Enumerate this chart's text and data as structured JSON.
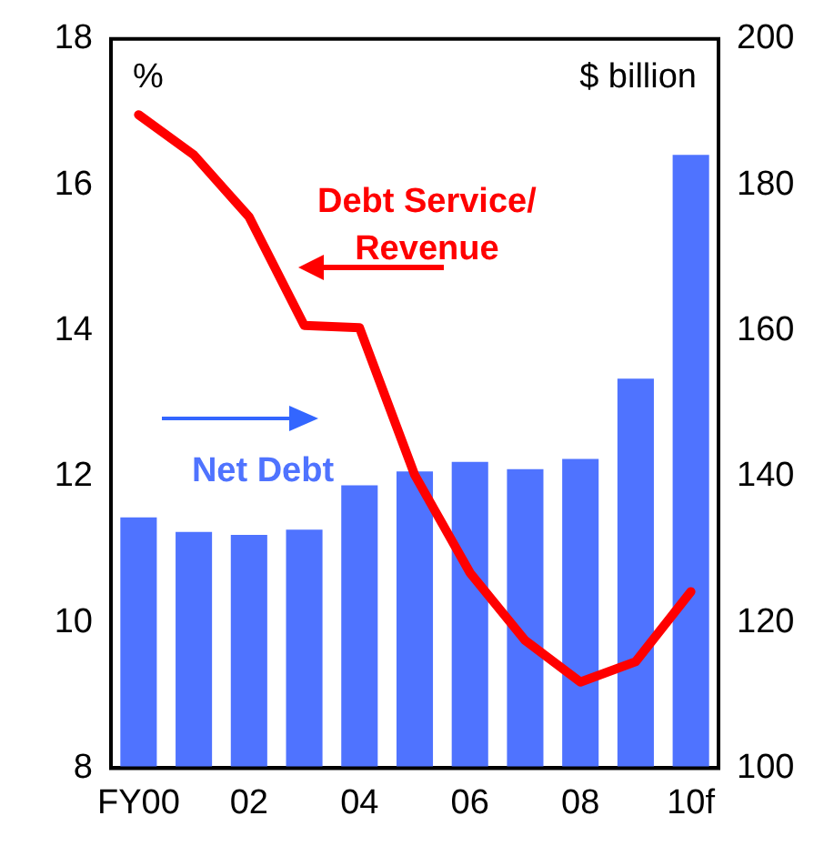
{
  "chart_data": {
    "type": "bar",
    "ylabel": "%",
    "y2label": "$ billion",
    "categories": [
      "FY00",
      null,
      "02",
      null,
      "04",
      null,
      "06",
      null,
      "08",
      null,
      "10f"
    ],
    "series": [
      {
        "name": "Net Debt",
        "axis": "y2",
        "color": "#4f73ff",
        "values": [
          134.4,
          132.4,
          132.0,
          132.7,
          138.8,
          140.7,
          142.0,
          141.0,
          142.4,
          153.4,
          184.1
        ]
      },
      {
        "name": "Debt Service/\nRevenue",
        "type": "line",
        "axis": "y",
        "color": "#ff0000",
        "values": [
          16.96,
          16.41,
          15.56,
          14.07,
          14.04,
          12.02,
          10.68,
          9.75,
          9.18,
          9.46,
          10.42
        ]
      }
    ],
    "ylim": [
      8,
      18
    ],
    "yticks": [
      8,
      10,
      12,
      14,
      16,
      18
    ],
    "y2lim": [
      100,
      200
    ],
    "y2ticks": [
      100,
      120,
      140,
      160,
      180,
      200
    ],
    "grid": false,
    "legend": false,
    "marker": "none",
    "line_style": "solid"
  }
}
